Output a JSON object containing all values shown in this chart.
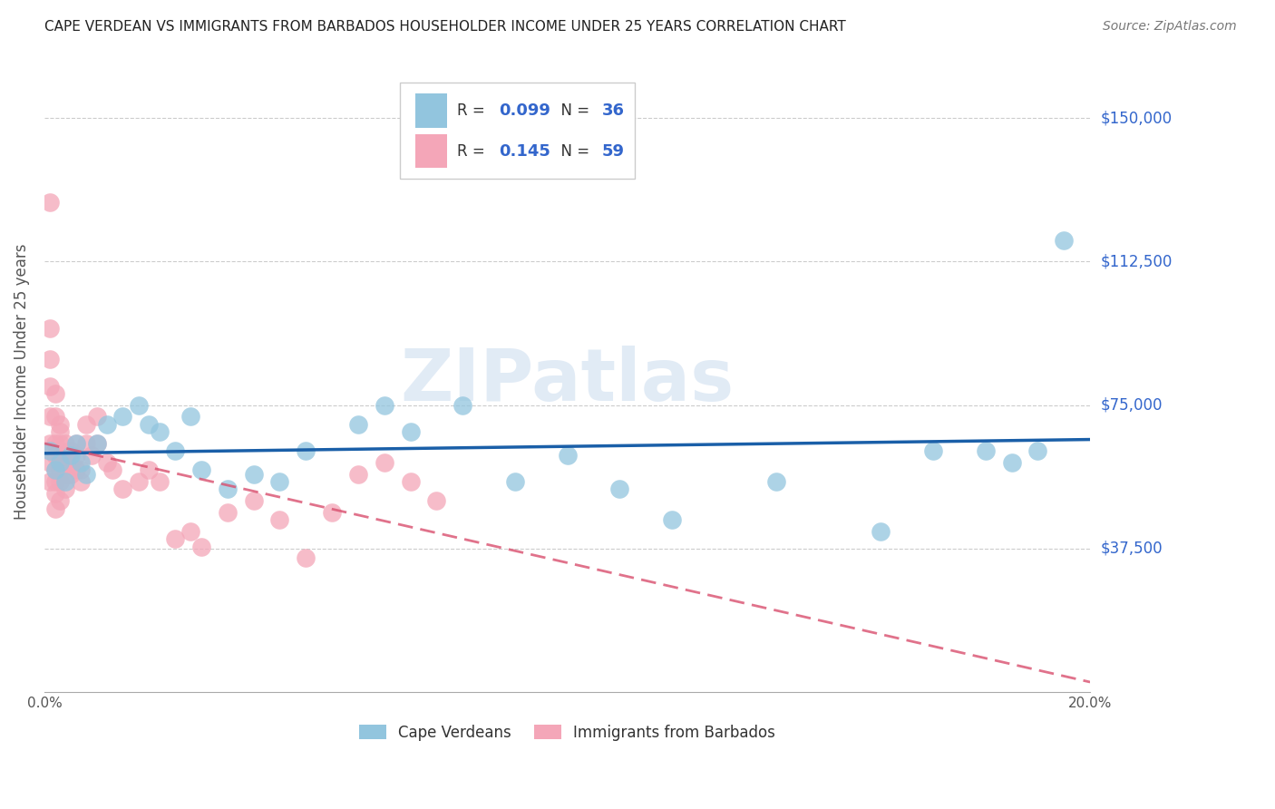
{
  "title": "CAPE VERDEAN VS IMMIGRANTS FROM BARBADOS HOUSEHOLDER INCOME UNDER 25 YEARS CORRELATION CHART",
  "source": "Source: ZipAtlas.com",
  "ylabel": "Householder Income Under 25 years",
  "xlim": [
    0.0,
    0.2
  ],
  "ylim": [
    0,
    162500
  ],
  "yticks": [
    0,
    37500,
    75000,
    112500,
    150000
  ],
  "ytick_labels": [
    "",
    "$37,500",
    "$75,000",
    "$112,500",
    "$150,000"
  ],
  "xticks": [
    0.0,
    0.05,
    0.1,
    0.15,
    0.2
  ],
  "xtick_labels": [
    "0.0%",
    "",
    "",
    "",
    "20.0%"
  ],
  "blue_color": "#92c5de",
  "pink_color": "#f4a6b8",
  "trend_blue_color": "#1a5fa8",
  "trend_pink_color": "#d94f6e",
  "watermark_color": "#c5d8ed",
  "label_color": "#3366cc",
  "cape_verdean_x": [
    0.001,
    0.002,
    0.003,
    0.004,
    0.005,
    0.006,
    0.007,
    0.008,
    0.01,
    0.012,
    0.015,
    0.018,
    0.02,
    0.022,
    0.025,
    0.028,
    0.03,
    0.035,
    0.04,
    0.045,
    0.05,
    0.06,
    0.065,
    0.07,
    0.08,
    0.09,
    0.1,
    0.11,
    0.12,
    0.14,
    0.16,
    0.17,
    0.18,
    0.185,
    0.19,
    0.195
  ],
  "cape_verdean_y": [
    63000,
    58000,
    60000,
    55000,
    62000,
    65000,
    60000,
    57000,
    65000,
    70000,
    72000,
    75000,
    70000,
    68000,
    63000,
    72000,
    58000,
    53000,
    57000,
    55000,
    63000,
    70000,
    75000,
    68000,
    75000,
    55000,
    62000,
    53000,
    45000,
    55000,
    42000,
    63000,
    63000,
    60000,
    63000,
    118000
  ],
  "barbados_x": [
    0.001,
    0.001,
    0.001,
    0.001,
    0.001,
    0.001,
    0.001,
    0.001,
    0.002,
    0.002,
    0.002,
    0.002,
    0.002,
    0.002,
    0.002,
    0.002,
    0.003,
    0.003,
    0.003,
    0.003,
    0.003,
    0.003,
    0.003,
    0.004,
    0.004,
    0.004,
    0.004,
    0.004,
    0.005,
    0.005,
    0.005,
    0.006,
    0.006,
    0.006,
    0.007,
    0.007,
    0.008,
    0.008,
    0.009,
    0.01,
    0.01,
    0.012,
    0.013,
    0.015,
    0.018,
    0.02,
    0.022,
    0.025,
    0.028,
    0.03,
    0.035,
    0.04,
    0.045,
    0.05,
    0.055,
    0.06,
    0.065,
    0.07,
    0.075
  ],
  "barbados_y": [
    128000,
    95000,
    87000,
    80000,
    72000,
    65000,
    60000,
    55000,
    78000,
    72000,
    65000,
    62000,
    58000,
    55000,
    52000,
    48000,
    70000,
    68000,
    65000,
    62000,
    58000,
    55000,
    50000,
    65000,
    62000,
    60000,
    57000,
    53000,
    63000,
    60000,
    57000,
    65000,
    62000,
    58000,
    58000,
    55000,
    70000,
    65000,
    62000,
    65000,
    72000,
    60000,
    58000,
    53000,
    55000,
    58000,
    55000,
    40000,
    42000,
    38000,
    47000,
    50000,
    45000,
    35000,
    47000,
    57000,
    60000,
    55000,
    50000
  ]
}
